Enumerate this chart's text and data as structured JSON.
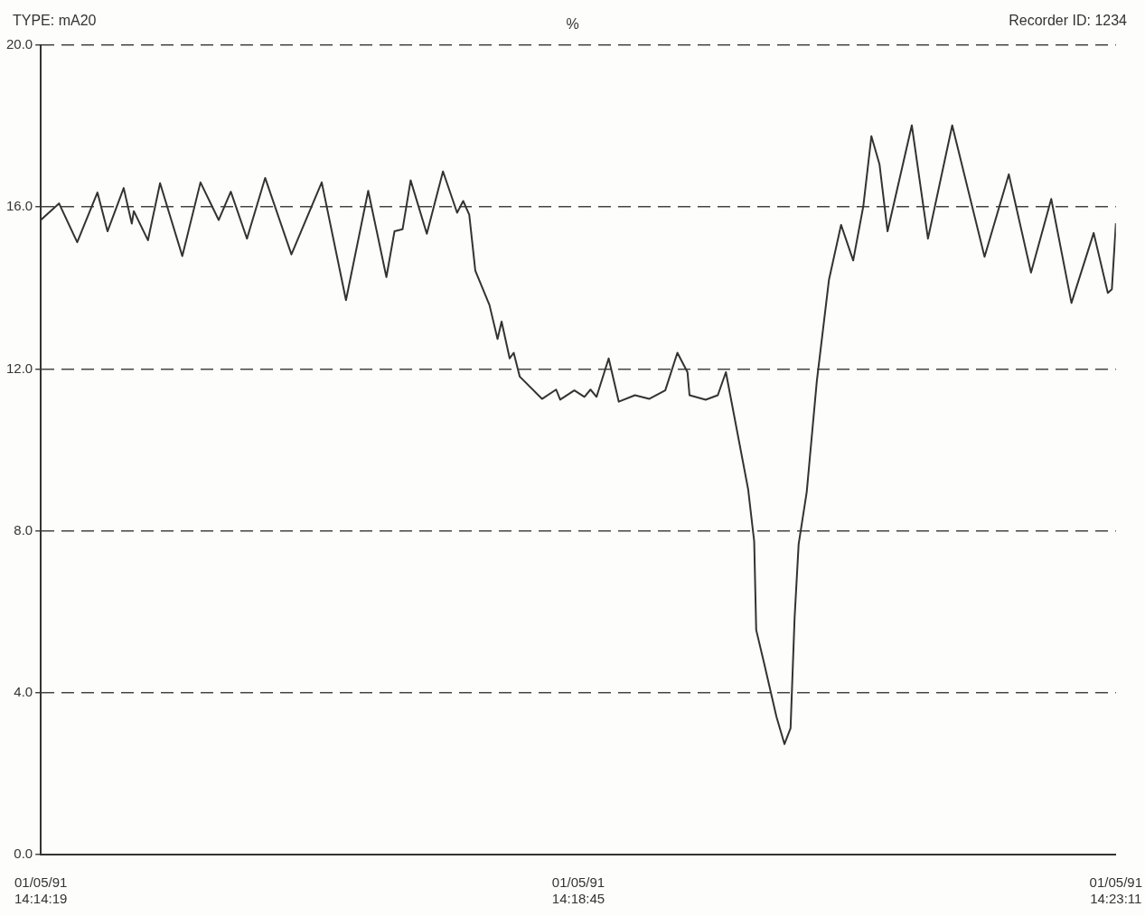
{
  "chart_data": {
    "type": "line",
    "title": "%",
    "annotations": [
      "TYPE: mA20",
      "Recorder ID: 1234"
    ],
    "x": [
      "1991-01-05T14:14:19",
      "1991-01-05T14:14:28",
      "1991-01-05T14:14:37",
      "1991-01-05T14:14:47",
      "1991-01-05T14:14:52",
      "1991-01-05T14:15:00",
      "1991-01-05T14:15:04",
      "1991-01-05T14:15:05",
      "1991-01-05T14:15:12",
      "1991-01-05T14:15:18",
      "1991-01-05T14:15:29",
      "1991-01-05T14:15:38",
      "1991-01-05T14:15:47",
      "1991-01-05T14:15:53",
      "1991-01-05T14:16:01",
      "1991-01-05T14:16:10",
      "1991-01-05T14:16:23",
      "1991-01-05T14:16:38",
      "1991-01-05T14:16:50",
      "1991-01-05T14:17:01",
      "1991-01-05T14:17:10",
      "1991-01-05T14:17:14",
      "1991-01-05T14:17:18",
      "1991-01-05T14:17:22",
      "1991-01-05T14:17:30",
      "1991-01-05T14:17:38",
      "1991-01-05T14:17:45",
      "1991-01-05T14:17:48",
      "1991-01-05T14:17:51",
      "1991-01-05T14:17:54",
      "1991-01-05T14:18:01",
      "1991-01-05T14:18:05",
      "1991-01-05T14:18:07",
      "1991-01-05T14:18:11",
      "1991-01-05T14:18:13",
      "1991-01-05T14:18:16",
      "1991-01-05T14:18:27",
      "1991-01-05T14:18:34",
      "1991-01-05T14:18:36",
      "1991-01-05T14:18:43",
      "1991-01-05T14:18:48",
      "1991-01-05T14:18:51",
      "1991-01-05T14:18:54",
      "1991-01-05T14:19:00",
      "1991-01-05T14:19:05",
      "1991-01-05T14:19:13",
      "1991-01-05T14:19:20",
      "1991-01-05T14:19:28",
      "1991-01-05T14:19:34",
      "1991-01-05T14:19:39",
      "1991-01-05T14:19:40",
      "1991-01-05T14:19:48",
      "1991-01-05T14:19:54",
      "1991-01-05T14:19:58",
      "1991-01-05T14:20:09",
      "1991-01-05T14:20:12",
      "1991-01-05T14:20:13",
      "1991-01-05T14:20:17",
      "1991-01-05T14:20:23",
      "1991-01-05T14:20:27",
      "1991-01-05T14:20:30",
      "1991-01-05T14:20:32",
      "1991-01-05T14:20:34",
      "1991-01-05T14:20:38",
      "1991-01-05T14:20:43",
      "1991-01-05T14:20:49",
      "1991-01-05T14:20:55",
      "1991-01-05T14:21:01",
      "1991-01-05T14:21:06",
      "1991-01-05T14:21:10",
      "1991-01-05T14:21:14",
      "1991-01-05T14:21:18",
      "1991-01-05T14:21:30",
      "1991-01-05T14:21:38",
      "1991-01-05T14:21:50",
      "1991-01-05T14:22:06",
      "1991-01-05T14:22:18",
      "1991-01-05T14:22:29",
      "1991-01-05T14:22:39",
      "1991-01-05T14:22:49",
      "1991-01-05T14:23:00",
      "1991-01-05T14:23:07",
      "1991-01-05T14:23:09",
      "1991-01-05T14:23:11"
    ],
    "series": [
      {
        "color": "#333333",
        "values": [
          15.68,
          16.09,
          15.13,
          16.36,
          15.4,
          16.47,
          15.59,
          15.9,
          15.18,
          16.59,
          14.79,
          16.61,
          15.68,
          16.38,
          15.22,
          16.72,
          14.83,
          16.61,
          13.7,
          16.4,
          14.27,
          15.4,
          15.45,
          16.66,
          15.34,
          16.88,
          15.86,
          16.15,
          15.81,
          14.43,
          13.58,
          12.74,
          13.17,
          12.26,
          12.4,
          11.81,
          11.26,
          11.49,
          11.24,
          11.47,
          11.31,
          11.49,
          11.31,
          12.26,
          11.19,
          11.35,
          11.26,
          11.47,
          12.4,
          11.92,
          11.35,
          11.24,
          11.35,
          11.92,
          9.03,
          7.74,
          5.55,
          4.71,
          3.41,
          2.73,
          3.12,
          5.85,
          7.67,
          8.96,
          11.7,
          14.2,
          15.56,
          14.68,
          16.02,
          17.75,
          17.06,
          15.4,
          18.02,
          15.22,
          18.02,
          14.77,
          16.81,
          14.38,
          16.2,
          13.63,
          15.36,
          13.88,
          13.97,
          15.6
        ]
      }
    ],
    "xlim": [
      "1991-01-05T14:14:19",
      "1991-01-05T14:23:11"
    ],
    "xticks": [
      {
        "value": "1991-01-05T14:14:19",
        "label": "01/05/91\n14:14:19"
      },
      {
        "value": "1991-01-05T14:18:45",
        "label": "01/05/91\n14:18:45"
      },
      {
        "value": "1991-01-05T14:23:11",
        "label": "01/05/91\n14:23:11"
      }
    ],
    "ylim": [
      0,
      20
    ],
    "yticks": [
      {
        "value": 0,
        "label": "0.0"
      },
      {
        "value": 4,
        "label": "4.0"
      },
      {
        "value": 8,
        "label": "8.0"
      },
      {
        "value": 12,
        "label": "12.0"
      },
      {
        "value": 16,
        "label": "16.0"
      },
      {
        "value": 20,
        "label": "20.0"
      }
    ],
    "grid": "y",
    "legend": false,
    "marker": "none",
    "line_style": "solid"
  }
}
